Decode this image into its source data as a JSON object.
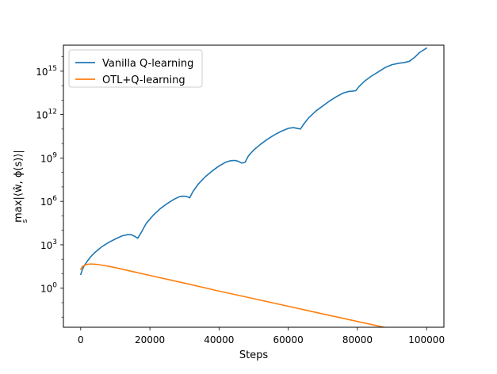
{
  "chart_data": {
    "type": "line",
    "title": "",
    "xlabel": "Steps",
    "ylabel_main": "max|⟨ŵ, ϕ(s)⟩|",
    "ylabel_sub": "s",
    "xscale": "linear",
    "yscale": "log",
    "xlim": [
      -5000,
      105000
    ],
    "ylim_log10": [
      -2.7,
      16.8
    ],
    "x_ticks": [
      0,
      20000,
      40000,
      60000,
      80000,
      100000
    ],
    "x_tick_labels": [
      "0",
      "20000",
      "40000",
      "60000",
      "80000",
      "100000"
    ],
    "y_ticks_log10": [
      0,
      3,
      6,
      9,
      12,
      15
    ],
    "y_tick_labels": [
      {
        "base": "10",
        "exp": "0"
      },
      {
        "base": "10",
        "exp": "3"
      },
      {
        "base": "10",
        "exp": "6"
      },
      {
        "base": "10",
        "exp": "9"
      },
      {
        "base": "10",
        "exp": "12"
      },
      {
        "base": "10",
        "exp": "15"
      }
    ],
    "grid": false,
    "legend_position": "upper-left",
    "series": [
      {
        "name": "Vanilla Q-learning",
        "color": "#1f77b4",
        "x": [
          0,
          500,
          1000,
          2000,
          3000,
          4000,
          5000,
          6000,
          8000,
          10000,
          12000,
          13500,
          14500,
          15500,
          16500,
          17500,
          19000,
          21000,
          23000,
          25000,
          27000,
          28500,
          29500,
          30500,
          31500,
          32500,
          34000,
          36000,
          38000,
          40000,
          42000,
          43500,
          44500,
          45500,
          46500,
          47500,
          48500,
          50000,
          52000,
          54000,
          56000,
          58000,
          60000,
          61500,
          62500,
          63500,
          64500,
          66000,
          68000,
          70000,
          72000,
          74000,
          76000,
          77500,
          78500,
          79500,
          80500,
          82000,
          84000,
          86000,
          88000,
          90000,
          92000,
          93500,
          95000,
          96500,
          98000,
          100000
        ],
        "log10_y": [
          0.95,
          1.3,
          1.55,
          1.9,
          2.2,
          2.45,
          2.65,
          2.85,
          3.15,
          3.4,
          3.62,
          3.7,
          3.7,
          3.6,
          3.45,
          3.85,
          4.5,
          5.05,
          5.5,
          5.85,
          6.15,
          6.32,
          6.36,
          6.35,
          6.25,
          6.7,
          7.2,
          7.7,
          8.1,
          8.45,
          8.72,
          8.82,
          8.83,
          8.78,
          8.65,
          8.7,
          9.15,
          9.55,
          9.95,
          10.3,
          10.6,
          10.85,
          11.05,
          11.1,
          11.05,
          11.0,
          11.35,
          11.8,
          12.25,
          12.6,
          12.95,
          13.25,
          13.5,
          13.6,
          13.62,
          13.65,
          13.95,
          14.3,
          14.65,
          14.95,
          15.25,
          15.45,
          15.55,
          15.6,
          15.68,
          15.95,
          16.3,
          16.6
        ]
      },
      {
        "name": "OTL+Q-learning",
        "color": "#ff7f0e",
        "x": [
          0,
          500,
          1000,
          2000,
          3000,
          4000,
          5000,
          6000,
          8000,
          10000,
          15000,
          20000,
          30000,
          40000,
          50000,
          60000,
          70000,
          80000,
          90000,
          100000
        ],
        "log10_y": [
          1.3,
          1.5,
          1.58,
          1.65,
          1.67,
          1.66,
          1.64,
          1.6,
          1.52,
          1.42,
          1.15,
          0.88,
          0.35,
          -0.2,
          -0.72,
          -1.25,
          -1.78,
          -2.3,
          -2.82,
          -3.34
        ]
      }
    ]
  }
}
